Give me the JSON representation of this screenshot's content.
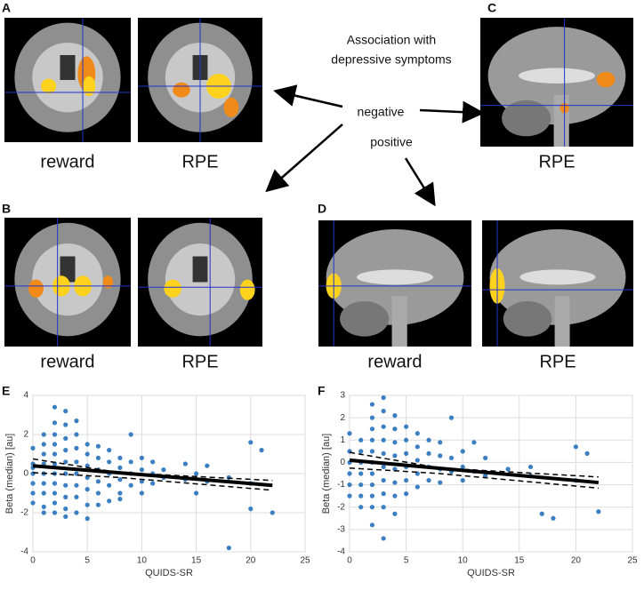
{
  "panels": {
    "labels": [
      "A",
      "B",
      "C",
      "D",
      "E",
      "F"
    ],
    "captions": [
      "reward",
      "RPE",
      "RPE",
      "reward",
      "RPE",
      "reward",
      "RPE"
    ]
  },
  "annotation": {
    "title_lines": [
      "Association with",
      "depressive symptoms"
    ],
    "negative": "negative",
    "positive": "positive"
  },
  "chart_data": [
    {
      "type": "scatter",
      "xlabel": "QUIDS-SR",
      "ylabel": "Beta (median) [au]",
      "color": "#3a7fc1",
      "grid": true,
      "xlim": [
        0,
        25
      ],
      "xticks": [
        0,
        5,
        10,
        15,
        20,
        25
      ],
      "ylim": [
        -4,
        4
      ],
      "yticks": [
        -4,
        -2,
        0,
        2,
        4
      ],
      "x": [
        0,
        0,
        0,
        0,
        0,
        0,
        0,
        1,
        1,
        1,
        1,
        1,
        1,
        1,
        1,
        1,
        2,
        2,
        2,
        2,
        2,
        2,
        2,
        2,
        2,
        2,
        2,
        3,
        3,
        3,
        3,
        3,
        3,
        3,
        3,
        3,
        3,
        4,
        4,
        4,
        4,
        4,
        4,
        4,
        4,
        5,
        5,
        5,
        5,
        5,
        5,
        5,
        6,
        6,
        6,
        6,
        6,
        6,
        7,
        7,
        7,
        7,
        7,
        8,
        8,
        8,
        8,
        8,
        9,
        9,
        9,
        9,
        10,
        10,
        10,
        10,
        11,
        11,
        11,
        12,
        12,
        14,
        14,
        15,
        15,
        16,
        16,
        18,
        18,
        20,
        20,
        20,
        21,
        22
      ],
      "values": [
        1.3,
        0.5,
        0,
        -0.5,
        -1,
        -1.5,
        0.3,
        2,
        1.5,
        1,
        0.5,
        0,
        -0.5,
        -1,
        -1.7,
        -2,
        3.4,
        2.6,
        2,
        1.5,
        1,
        0.5,
        0,
        -0.5,
        -1,
        -1.5,
        -2,
        3.2,
        2.5,
        1.8,
        1.2,
        0.6,
        0,
        -0.6,
        -1.2,
        -1.8,
        -2.2,
        2.7,
        2,
        1.3,
        0.6,
        0,
        -0.6,
        -1.2,
        -2,
        1.5,
        1,
        0.4,
        -0.2,
        -0.8,
        -1.6,
        -2.3,
        1.4,
        0.8,
        0.2,
        -0.4,
        -1,
        -1.6,
        1.2,
        0.6,
        0,
        -0.6,
        -1.4,
        0.8,
        0.3,
        -0.3,
        -1,
        -1.3,
        2,
        0.6,
        0,
        -0.6,
        0.8,
        0.2,
        -0.4,
        -1,
        0.6,
        0,
        -0.5,
        0.2,
        -0.2,
        0.5,
        -0.3,
        0,
        -1,
        0.4,
        -0.4,
        -0.2,
        -3.8,
        1.6,
        -0.5,
        -1.8,
        1.2,
        -2
      ],
      "lines": [
        {
          "style": "solid",
          "x": [
            0,
            22
          ],
          "values": [
            0.4,
            -0.6
          ]
        },
        {
          "style": "dashed",
          "x": [
            0,
            8,
            22
          ],
          "values": [
            0.75,
            0.05,
            -0.35
          ]
        },
        {
          "style": "dashed",
          "x": [
            0,
            8,
            22
          ],
          "values": [
            0.05,
            -0.2,
            -0.85
          ]
        }
      ]
    },
    {
      "type": "scatter",
      "xlabel": "QUIDS-SR",
      "ylabel": "Beta (median) [au]",
      "color": "#3a7fc1",
      "grid": true,
      "xlim": [
        0,
        25
      ],
      "xticks": [
        0,
        5,
        10,
        15,
        20,
        25
      ],
      "ylim": [
        -4,
        3
      ],
      "yticks": [
        -4,
        -3,
        -2,
        -1,
        0,
        1,
        2,
        3
      ],
      "x": [
        0,
        0,
        0,
        0,
        0,
        0,
        1,
        1,
        1,
        1,
        1,
        1,
        1,
        2,
        2,
        2,
        2,
        2,
        2,
        2,
        2,
        2,
        2,
        2,
        3,
        3,
        3,
        3,
        3,
        3,
        3,
        3,
        3,
        3,
        4,
        4,
        4,
        4,
        4,
        4,
        4,
        4,
        5,
        5,
        5,
        5,
        5,
        5,
        6,
        6,
        6,
        6,
        6,
        7,
        7,
        7,
        7,
        8,
        8,
        8,
        8,
        9,
        9,
        9,
        10,
        10,
        10,
        11,
        11,
        12,
        12,
        14,
        16,
        16,
        17,
        18,
        20,
        20,
        21,
        22
      ],
      "values": [
        1.3,
        0.5,
        0,
        -0.5,
        -1,
        -1.5,
        1,
        0.5,
        0,
        -0.5,
        -1,
        -1.5,
        -2,
        2.6,
        2,
        1.5,
        1,
        0.5,
        0,
        -0.5,
        -1,
        -1.5,
        -2,
        -2.8,
        2.9,
        2.3,
        1.6,
        1,
        0.4,
        -0.2,
        -0.8,
        -1.4,
        -2,
        -3.4,
        2.1,
        1.5,
        0.9,
        0.3,
        -0.3,
        -0.9,
        -1.5,
        -2.3,
        1.6,
        1,
        0.4,
        -0.2,
        -0.8,
        -1.4,
        1.3,
        0.7,
        0.1,
        -0.5,
        -1.1,
        1,
        0.4,
        -0.2,
        -0.8,
        0.9,
        0.3,
        -0.3,
        -0.9,
        2,
        0.2,
        -0.4,
        0.5,
        -0.2,
        -0.8,
        0.9,
        -0.4,
        0.2,
        -0.6,
        -0.3,
        -0.2,
        -0.6,
        -2.3,
        -2.5,
        0.7,
        -0.8,
        0.4,
        -2.2
      ],
      "lines": [
        {
          "style": "solid",
          "x": [
            0,
            22
          ],
          "values": [
            0.1,
            -0.9
          ]
        },
        {
          "style": "dashed",
          "x": [
            0,
            8,
            22
          ],
          "values": [
            0.45,
            -0.25,
            -0.65
          ]
        },
        {
          "style": "dashed",
          "x": [
            0,
            8,
            22
          ],
          "values": [
            -0.25,
            -0.5,
            -1.15
          ]
        }
      ]
    }
  ]
}
